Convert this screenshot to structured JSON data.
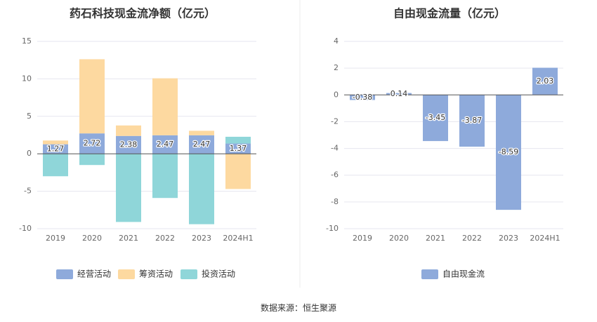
{
  "source_label": "数据来源：恒生聚源",
  "colors": {
    "operating": "#8eaadb",
    "financing": "#fdd9a0",
    "investing": "#8fd6d9",
    "fcf": "#8eaadb"
  },
  "chart_data": [
    {
      "type": "bar",
      "stacked": true,
      "title": "药石科技现金流净额（亿元）",
      "categories": [
        "2019",
        "2020",
        "2021",
        "2022",
        "2023",
        "2024H1"
      ],
      "ylim": [
        -10,
        15
      ],
      "yticks": [
        15,
        10,
        5,
        0,
        -5,
        -10
      ],
      "grid": true,
      "legend_position": "bottom",
      "series": [
        {
          "name": "经营活动",
          "key": "operating",
          "values": [
            1.27,
            2.72,
            2.38,
            2.47,
            2.47,
            1.37
          ],
          "labels": [
            "1.27",
            "2.72",
            "2.38",
            "2.47",
            "2.47",
            "1.37"
          ]
        },
        {
          "name": "筹资活动",
          "key": "financing",
          "values": [
            0.5,
            9.9,
            1.4,
            7.6,
            0.6,
            -4.7
          ]
        },
        {
          "name": "投资活动",
          "key": "investing",
          "values": [
            -3.0,
            -1.5,
            -9.1,
            -5.9,
            -9.4,
            0.9
          ]
        }
      ]
    },
    {
      "type": "bar",
      "title": "自由现金流量（亿元）",
      "categories": [
        "2019",
        "2020",
        "2021",
        "2022",
        "2023",
        "2024H1"
      ],
      "ylim": [
        -10,
        4
      ],
      "yticks": [
        4,
        2,
        0,
        -2,
        -4,
        -6,
        -8,
        -10
      ],
      "grid": true,
      "legend_position": "bottom",
      "series": [
        {
          "name": "自由现金流",
          "key": "fcf",
          "values": [
            -0.38,
            0.14,
            -3.45,
            -3.87,
            -8.59,
            2.03
          ],
          "labels": [
            "-0.38",
            "0.14",
            "-3.45",
            "-3.87",
            "-8.59",
            "2.03"
          ]
        }
      ]
    }
  ]
}
